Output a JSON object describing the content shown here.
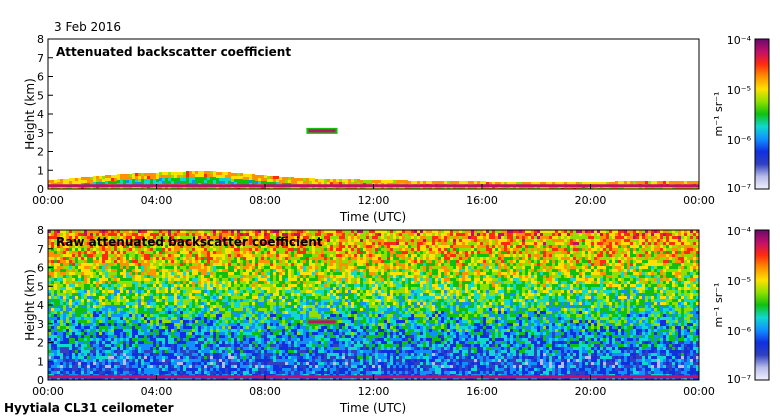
{
  "date": "3 Feb 2016",
  "footer": "Hyytiala CL31 ceilometer",
  "colorbar": {
    "unit": "m⁻¹ sr⁻¹",
    "labels": [
      "10⁻⁴",
      "10⁻⁵",
      "10⁻⁶",
      "10⁻⁷"
    ],
    "colors": [
      "#6a0a6a",
      "#c0106a",
      "#ff2a10",
      "#ff9000",
      "#ffe000",
      "#8fe000",
      "#10c010",
      "#10d8d0",
      "#1090ff",
      "#1030e0",
      "#3040c0",
      "#b8bce8",
      "#f0f0ff"
    ]
  },
  "chart_data": [
    {
      "type": "heatmap",
      "title": "Attenuated backscatter coefficient",
      "xlabel": "Time (UTC)",
      "ylabel": "Height (km)",
      "xlim": [
        0,
        24
      ],
      "ylim": [
        0,
        8
      ],
      "xticks": [
        "00:00",
        "04:00",
        "08:00",
        "12:00",
        "16:00",
        "20:00",
        "00:00"
      ],
      "yticks": [
        "0",
        "1",
        "2",
        "3",
        "4",
        "5",
        "6",
        "7",
        "8"
      ],
      "color_scale": "log",
      "clim": [
        1e-07,
        0.0001
      ],
      "features": [
        {
          "name": "boundary layer top",
          "hours": [
            0,
            3,
            5.8,
            9.3,
            14,
            18,
            24
          ],
          "height_km": [
            0.45,
            0.8,
            0.95,
            0.55,
            0.4,
            0.35,
            0.4
          ]
        },
        {
          "name": "elevated cloud layer",
          "hours": [
            9.6,
            10.6
          ],
          "height_km": 3.1
        },
        {
          "name": "near-surface layer",
          "hours": [
            0,
            24
          ],
          "height_km": 0.2
        }
      ]
    },
    {
      "type": "heatmap",
      "title": "Raw attenuated backscatter coefficient",
      "xlabel": "Time (UTC)",
      "ylabel": "Height (km)",
      "xlim": [
        0,
        24
      ],
      "ylim": [
        0,
        8
      ],
      "xticks": [
        "00:00",
        "04:00",
        "08:00",
        "12:00",
        "16:00",
        "20:00",
        "00:00"
      ],
      "yticks": [
        "0",
        "1",
        "2",
        "3",
        "4",
        "5",
        "6",
        "7",
        "8"
      ],
      "color_scale": "log",
      "clim": [
        1e-07,
        0.0001
      ],
      "features": [
        {
          "name": "elevated cloud layer",
          "hours": [
            9.6,
            10.6
          ],
          "height_km": 3.1
        },
        {
          "name": "near-surface layer",
          "hours": [
            0,
            24
          ],
          "height_km": 0.2
        }
      ]
    }
  ]
}
